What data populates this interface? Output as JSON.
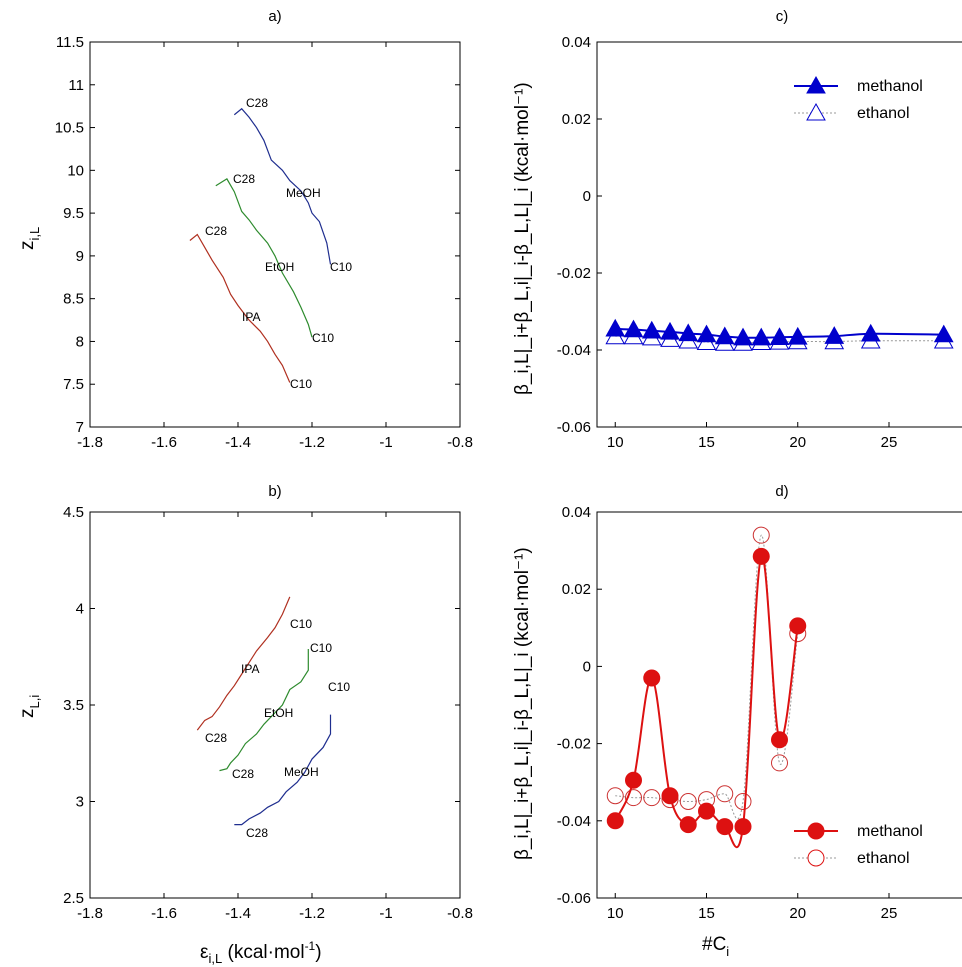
{
  "colors": {
    "methanol_blue": "#0000cc",
    "methanol_red": "#dd1111",
    "ethanol_gray": "#999999",
    "ipa_line": "#b03020",
    "etoh_line": "#2e8b2e",
    "meoh_line": "#1f2e8f"
  },
  "axis_labels": {
    "eps": "ε",
    "eps_sub": "i,L",
    "eps_unit": " (kcal·mol",
    "eps_sup": "-1",
    "eps_close": ")",
    "nc": "#C",
    "nc_sub": "i",
    "zil": "z",
    "zil_sub": "i,L",
    "zli": "z",
    "zli_sub": "L,i",
    "beta_c": "β_i,L|_i+β_L,i|_i-β_L,L|_i (kcal·mol⁻¹)",
    "beta_d": "β_i,L|_i+β_L,i|_i-β_L,L|_i (kcal·mol⁻¹)"
  },
  "chart_data": [
    {
      "panel": "a)",
      "type": "line",
      "title": "a)",
      "xlabel": "ε_i,L (kcal·mol⁻¹)",
      "ylabel": "z_i,L",
      "xlim": [
        -1.8,
        -0.8
      ],
      "ylim": [
        7,
        11.5
      ],
      "xticks": [
        "-1.8",
        "-1.6",
        "-1.4",
        "-1.2",
        "-1",
        "-0.8"
      ],
      "yticks": [
        "7",
        "7.5",
        "8",
        "8.5",
        "9",
        "9.5",
        "10",
        "10.5",
        "11",
        "11.5"
      ],
      "series": [
        {
          "label": "MeOH",
          "color": "#1f2e8f",
          "end_label_top": "C28",
          "end_label_bottom": "C10",
          "points": [
            [
              -1.41,
              10.65
            ],
            [
              -1.39,
              10.72
            ],
            [
              -1.37,
              10.62
            ],
            [
              -1.35,
              10.5
            ],
            [
              -1.33,
              10.35
            ],
            [
              -1.31,
              10.12
            ],
            [
              -1.28,
              10.0
            ],
            [
              -1.26,
              9.88
            ],
            [
              -1.23,
              9.76
            ],
            [
              -1.21,
              9.62
            ],
            [
              -1.2,
              9.5
            ],
            [
              -1.18,
              9.4
            ],
            [
              -1.16,
              9.15
            ],
            [
              -1.15,
              8.9
            ]
          ]
        },
        {
          "label": "EtOH",
          "color": "#2e8b2e",
          "end_label_top": "C28",
          "end_label_bottom": "C10",
          "points": [
            [
              -1.46,
              9.82
            ],
            [
              -1.43,
              9.9
            ],
            [
              -1.41,
              9.75
            ],
            [
              -1.39,
              9.52
            ],
            [
              -1.37,
              9.42
            ],
            [
              -1.35,
              9.3
            ],
            [
              -1.32,
              9.15
            ],
            [
              -1.3,
              9.0
            ],
            [
              -1.28,
              8.8
            ],
            [
              -1.25,
              8.58
            ],
            [
              -1.23,
              8.4
            ],
            [
              -1.21,
              8.2
            ],
            [
              -1.2,
              8.05
            ]
          ]
        },
        {
          "label": "IPA",
          "color": "#b03020",
          "end_label_top": "C28",
          "end_label_bottom": "C10",
          "points": [
            [
              -1.53,
              9.18
            ],
            [
              -1.51,
              9.25
            ],
            [
              -1.49,
              9.1
            ],
            [
              -1.47,
              8.95
            ],
            [
              -1.44,
              8.75
            ],
            [
              -1.42,
              8.55
            ],
            [
              -1.4,
              8.42
            ],
            [
              -1.37,
              8.25
            ],
            [
              -1.34,
              8.12
            ],
            [
              -1.32,
              8.0
            ],
            [
              -1.3,
              7.85
            ],
            [
              -1.28,
              7.72
            ],
            [
              -1.26,
              7.52
            ]
          ]
        }
      ],
      "annotations": [
        "C28",
        "MeOH",
        "C10",
        "C28",
        "EtOH",
        "C10",
        "C28",
        "IPA",
        "C10"
      ]
    },
    {
      "panel": "b)",
      "type": "line",
      "title": "b)",
      "xlabel": "ε_i,L (kcal·mol⁻¹)",
      "ylabel": "z_L,i",
      "xlim": [
        -1.8,
        -0.8
      ],
      "ylim": [
        2.5,
        4.5
      ],
      "xticks": [
        "-1.8",
        "-1.6",
        "-1.4",
        "-1.2",
        "-1",
        "-0.8"
      ],
      "yticks": [
        "2.5",
        "3",
        "3.5",
        "4",
        "4.5"
      ],
      "series": [
        {
          "label": "IPA",
          "color": "#b03020",
          "end_label_top": "C10",
          "end_label_bottom": "C28",
          "points": [
            [
              -1.26,
              4.06
            ],
            [
              -1.28,
              3.97
            ],
            [
              -1.3,
              3.9
            ],
            [
              -1.32,
              3.85
            ],
            [
              -1.35,
              3.78
            ],
            [
              -1.37,
              3.72
            ],
            [
              -1.39,
              3.66
            ],
            [
              -1.41,
              3.6
            ],
            [
              -1.43,
              3.55
            ],
            [
              -1.45,
              3.49
            ],
            [
              -1.47,
              3.44
            ],
            [
              -1.49,
              3.42
            ],
            [
              -1.51,
              3.37
            ]
          ]
        },
        {
          "label": "EtOH",
          "color": "#2e8b2e",
          "end_label_top": "C10",
          "end_label_bottom": "C28",
          "points": [
            [
              -1.21,
              3.79
            ],
            [
              -1.21,
              3.68
            ],
            [
              -1.23,
              3.62
            ],
            [
              -1.26,
              3.58
            ],
            [
              -1.28,
              3.5
            ],
            [
              -1.31,
              3.44
            ],
            [
              -1.33,
              3.4
            ],
            [
              -1.35,
              3.35
            ],
            [
              -1.38,
              3.3
            ],
            [
              -1.4,
              3.24
            ],
            [
              -1.42,
              3.2
            ],
            [
              -1.43,
              3.17
            ],
            [
              -1.45,
              3.16
            ]
          ]
        },
        {
          "label": "MeOH",
          "color": "#1f2e8f",
          "end_label_top": "C10",
          "end_label_bottom": "C28",
          "points": [
            [
              -1.15,
              3.45
            ],
            [
              -1.15,
              3.35
            ],
            [
              -1.17,
              3.28
            ],
            [
              -1.2,
              3.22
            ],
            [
              -1.22,
              3.15
            ],
            [
              -1.24,
              3.1
            ],
            [
              -1.27,
              3.05
            ],
            [
              -1.29,
              3.0
            ],
            [
              -1.32,
              2.97
            ],
            [
              -1.34,
              2.94
            ],
            [
              -1.37,
              2.91
            ],
            [
              -1.39,
              2.88
            ],
            [
              -1.41,
              2.88
            ]
          ]
        }
      ],
      "annotations": [
        "C10",
        "IPA",
        "C28",
        "C10",
        "EtOH",
        "C28",
        "C10",
        "MeOH",
        "C28"
      ]
    },
    {
      "panel": "c)",
      "type": "line",
      "title": "c)",
      "xlabel": "",
      "ylabel": "β_i,L|_i+β_L,i|_i-β_L,L|_i (kcal·mol⁻¹)",
      "xlim": [
        9,
        29
      ],
      "ylim": [
        -0.06,
        0.04
      ],
      "xticks": [
        "10",
        "15",
        "20",
        "25"
      ],
      "yticks": [
        "-0.06",
        "-0.04",
        "-0.02",
        "0",
        "0.02",
        "0.04"
      ],
      "legend_position": "top-right",
      "series": [
        {
          "name": "methanol",
          "color": "#0000cc",
          "marker": "filled-triangle",
          "x": [
            10,
            11,
            12,
            13,
            14,
            15,
            16,
            17,
            18,
            19,
            20,
            22,
            24,
            28
          ],
          "y": [
            -0.0345,
            -0.0347,
            -0.035,
            -0.0353,
            -0.0357,
            -0.036,
            -0.0365,
            -0.0368,
            -0.0368,
            -0.0367,
            -0.0366,
            -0.0364,
            -0.0358,
            -0.036
          ]
        },
        {
          "name": "ethanol",
          "color": "#999999",
          "marker": "open-triangle",
          "x": [
            10,
            11,
            12,
            13,
            14,
            15,
            16,
            17,
            18,
            19,
            20,
            22,
            24,
            28
          ],
          "y": [
            -0.0365,
            -0.0365,
            -0.0368,
            -0.0372,
            -0.0376,
            -0.038,
            -0.0382,
            -0.0382,
            -0.038,
            -0.0379,
            -0.0378,
            -0.0378,
            -0.0376,
            -0.0376
          ]
        }
      ]
    },
    {
      "panel": "d)",
      "type": "line",
      "title": "d)",
      "xlabel": "#C_i",
      "ylabel": "β_i,L|_i+β_L,i|_i-β_L,L|_i (kcal·mol⁻¹)",
      "xlim": [
        9,
        29
      ],
      "ylim": [
        -0.06,
        0.04
      ],
      "xticks": [
        "10",
        "15",
        "20",
        "25"
      ],
      "yticks": [
        "-0.06",
        "-0.04",
        "-0.02",
        "0",
        "0.02",
        "0.04"
      ],
      "legend_position": "bottom-right",
      "series": [
        {
          "name": "methanol",
          "color": "#dd1111",
          "marker": "filled-circle",
          "x": [
            10,
            11,
            12,
            13,
            14,
            15,
            16,
            17,
            18,
            19,
            20
          ],
          "y": [
            -0.04,
            -0.0295,
            -0.003,
            -0.0335,
            -0.041,
            -0.0375,
            -0.0415,
            -0.0415,
            0.0285,
            -0.019,
            0.0105
          ]
        },
        {
          "name": "ethanol",
          "color": "#999999",
          "marker": "open-circle",
          "x": [
            10,
            11,
            12,
            13,
            14,
            15,
            16,
            17,
            18,
            19,
            20
          ],
          "y": [
            -0.0335,
            -0.034,
            -0.034,
            -0.0345,
            -0.035,
            -0.0345,
            -0.033,
            -0.035,
            0.034,
            -0.025,
            0.0085
          ]
        }
      ]
    }
  ]
}
